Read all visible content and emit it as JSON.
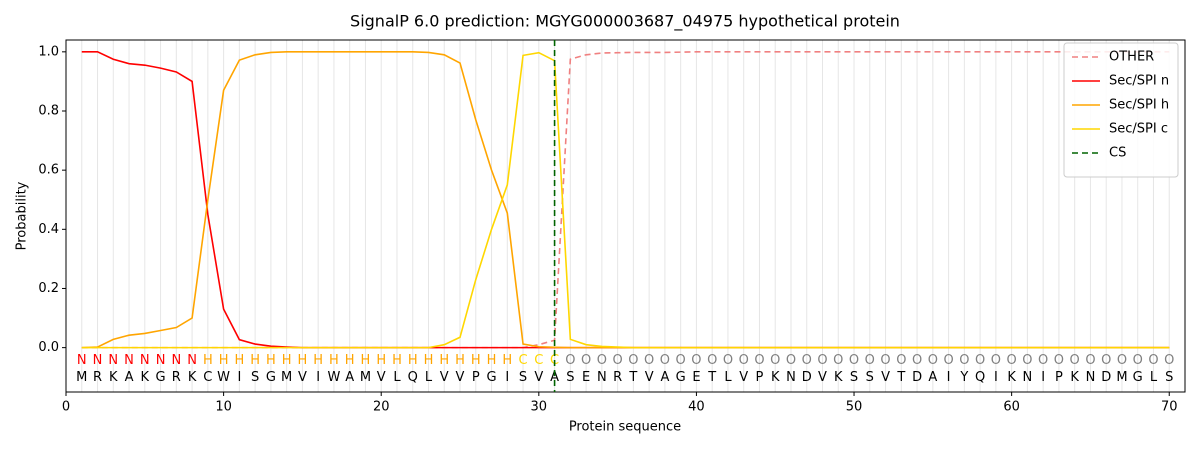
{
  "chart_data": {
    "type": "line",
    "title": "SignalP 6.0 prediction: MGYG000003687_04975 hypothetical protein",
    "xlabel": "Protein sequence",
    "ylabel": "Probability",
    "x": [
      1,
      2,
      3,
      4,
      5,
      6,
      7,
      8,
      9,
      10,
      11,
      12,
      13,
      14,
      15,
      16,
      17,
      18,
      19,
      20,
      21,
      22,
      23,
      24,
      25,
      26,
      27,
      28,
      29,
      30,
      31,
      32,
      33,
      34,
      35,
      36,
      37,
      38,
      39,
      40,
      41,
      42,
      43,
      44,
      45,
      46,
      47,
      48,
      49,
      50,
      51,
      52,
      53,
      54,
      55,
      56,
      57,
      58,
      59,
      60,
      61,
      62,
      63,
      64,
      65,
      66,
      67,
      68,
      69,
      70
    ],
    "sequence": [
      "M",
      "R",
      "K",
      "A",
      "K",
      "G",
      "R",
      "K",
      "C",
      "W",
      "I",
      "S",
      "G",
      "M",
      "V",
      "I",
      "W",
      "A",
      "M",
      "V",
      "L",
      "Q",
      "L",
      "V",
      "V",
      "P",
      "G",
      "I",
      "S",
      "V",
      "A",
      "S",
      "E",
      "N",
      "R",
      "T",
      "V",
      "A",
      "G",
      "E",
      "T",
      "L",
      "V",
      "P",
      "K",
      "N",
      "D",
      "V",
      "K",
      "S",
      "S",
      "V",
      "T",
      "D",
      "A",
      "I",
      "Y",
      "Q",
      "I",
      "K",
      "N",
      "I",
      "P",
      "K",
      "N",
      "D",
      "M",
      "G",
      "L",
      "S"
    ],
    "labels": [
      "N",
      "N",
      "N",
      "N",
      "N",
      "N",
      "N",
      "N",
      "H",
      "H",
      "H",
      "H",
      "H",
      "H",
      "H",
      "H",
      "H",
      "H",
      "H",
      "H",
      "H",
      "H",
      "H",
      "H",
      "H",
      "H",
      "H",
      "H",
      "C",
      "C",
      "C",
      "O",
      "O",
      "O",
      "O",
      "O",
      "O",
      "O",
      "O",
      "O",
      "O",
      "O",
      "O",
      "O",
      "O",
      "O",
      "O",
      "O",
      "O",
      "O",
      "O",
      "O",
      "O",
      "O",
      "O",
      "O",
      "O",
      "O",
      "O",
      "O",
      "O",
      "O",
      "O",
      "O",
      "O",
      "O",
      "O",
      "O",
      "O",
      "O"
    ],
    "label_colors": {
      "N": "#ff0000",
      "H": "#ffa500",
      "C": "#ffd700",
      "O": "#808080"
    },
    "series": [
      {
        "name": "OTHER",
        "color": "#f08080",
        "linestyle": "dashed",
        "values": [
          0,
          0,
          0,
          0,
          0,
          0,
          0,
          0,
          0,
          0,
          0,
          0,
          0,
          0,
          0,
          0,
          0,
          0,
          0,
          0,
          0,
          0,
          0,
          0,
          0,
          0,
          0,
          0,
          0,
          0.01,
          0.025,
          0.975,
          0.99,
          0.996,
          0.997,
          0.998,
          0.998,
          0.998,
          0.999,
          1,
          1,
          1,
          1,
          1,
          1,
          1,
          1,
          1,
          1,
          1,
          1,
          1,
          1,
          1,
          1,
          1,
          1,
          1,
          1,
          1,
          1,
          1,
          1,
          1,
          1,
          1,
          1,
          1,
          1,
          1
        ]
      },
      {
        "name": "Sec/SPI n",
        "color": "#ff0000",
        "linestyle": "solid",
        "values": [
          1.0,
          1.0,
          0.975,
          0.96,
          0.955,
          0.945,
          0.932,
          0.9,
          0.45,
          0.13,
          0.027,
          0.012,
          0.005,
          0.002,
          0,
          0,
          0,
          0,
          0,
          0,
          0,
          0,
          0,
          0,
          0,
          0,
          0,
          0,
          0,
          0,
          0,
          0,
          0,
          0,
          0,
          0,
          0,
          0,
          0,
          0,
          0,
          0,
          0,
          0,
          0,
          0,
          0,
          0,
          0,
          0,
          0,
          0,
          0,
          0,
          0,
          0,
          0,
          0,
          0,
          0,
          0,
          0,
          0,
          0,
          0,
          0,
          0,
          0,
          0,
          0
        ]
      },
      {
        "name": "Sec/SPI h",
        "color": "#ffa500",
        "linestyle": "solid",
        "values": [
          0,
          0.002,
          0.028,
          0.042,
          0.048,
          0.058,
          0.068,
          0.1,
          0.5,
          0.87,
          0.972,
          0.99,
          0.998,
          1,
          1,
          1,
          1,
          1,
          1,
          1,
          1,
          1,
          0.998,
          0.99,
          0.962,
          0.77,
          0.6,
          0.455,
          0.012,
          0.003,
          0.001,
          0,
          0,
          0,
          0,
          0,
          0,
          0,
          0,
          0,
          0,
          0,
          0,
          0,
          0,
          0,
          0,
          0,
          0,
          0,
          0,
          0,
          0,
          0,
          0,
          0,
          0,
          0,
          0,
          0,
          0,
          0,
          0,
          0,
          0,
          0,
          0,
          0,
          0,
          0
        ]
      },
      {
        "name": "Sec/SPI c",
        "color": "#ffd700",
        "linestyle": "solid",
        "values": [
          0,
          0,
          0,
          0,
          0,
          0,
          0,
          0,
          0,
          0,
          0,
          0,
          0,
          0,
          0,
          0,
          0,
          0,
          0,
          0,
          0,
          0,
          0,
          0.01,
          0.035,
          0.23,
          0.4,
          0.55,
          0.988,
          0.997,
          0.97,
          0.028,
          0.01,
          0.004,
          0.002,
          0,
          0,
          0,
          0,
          0,
          0,
          0,
          0,
          0,
          0,
          0,
          0,
          0,
          0,
          0,
          0,
          0,
          0,
          0,
          0,
          0,
          0,
          0,
          0,
          0,
          0,
          0,
          0,
          0,
          0,
          0,
          0,
          0,
          0,
          0
        ]
      }
    ],
    "markers": [
      {
        "name": "CS",
        "x": 31,
        "color": "#006400",
        "linestyle": "dashed"
      }
    ],
    "xlim": [
      0,
      71
    ],
    "ylim": [
      -0.15,
      1.04
    ],
    "xticks": [
      0,
      10,
      20,
      30,
      40,
      50,
      60,
      70
    ],
    "yticks": [
      {
        "value": 0,
        "label": "0.0"
      },
      0.2,
      0.4,
      0.6,
      0.8,
      {
        "value": 1,
        "label": "1.0"
      }
    ],
    "grid_x": true,
    "legend": "upper right"
  }
}
